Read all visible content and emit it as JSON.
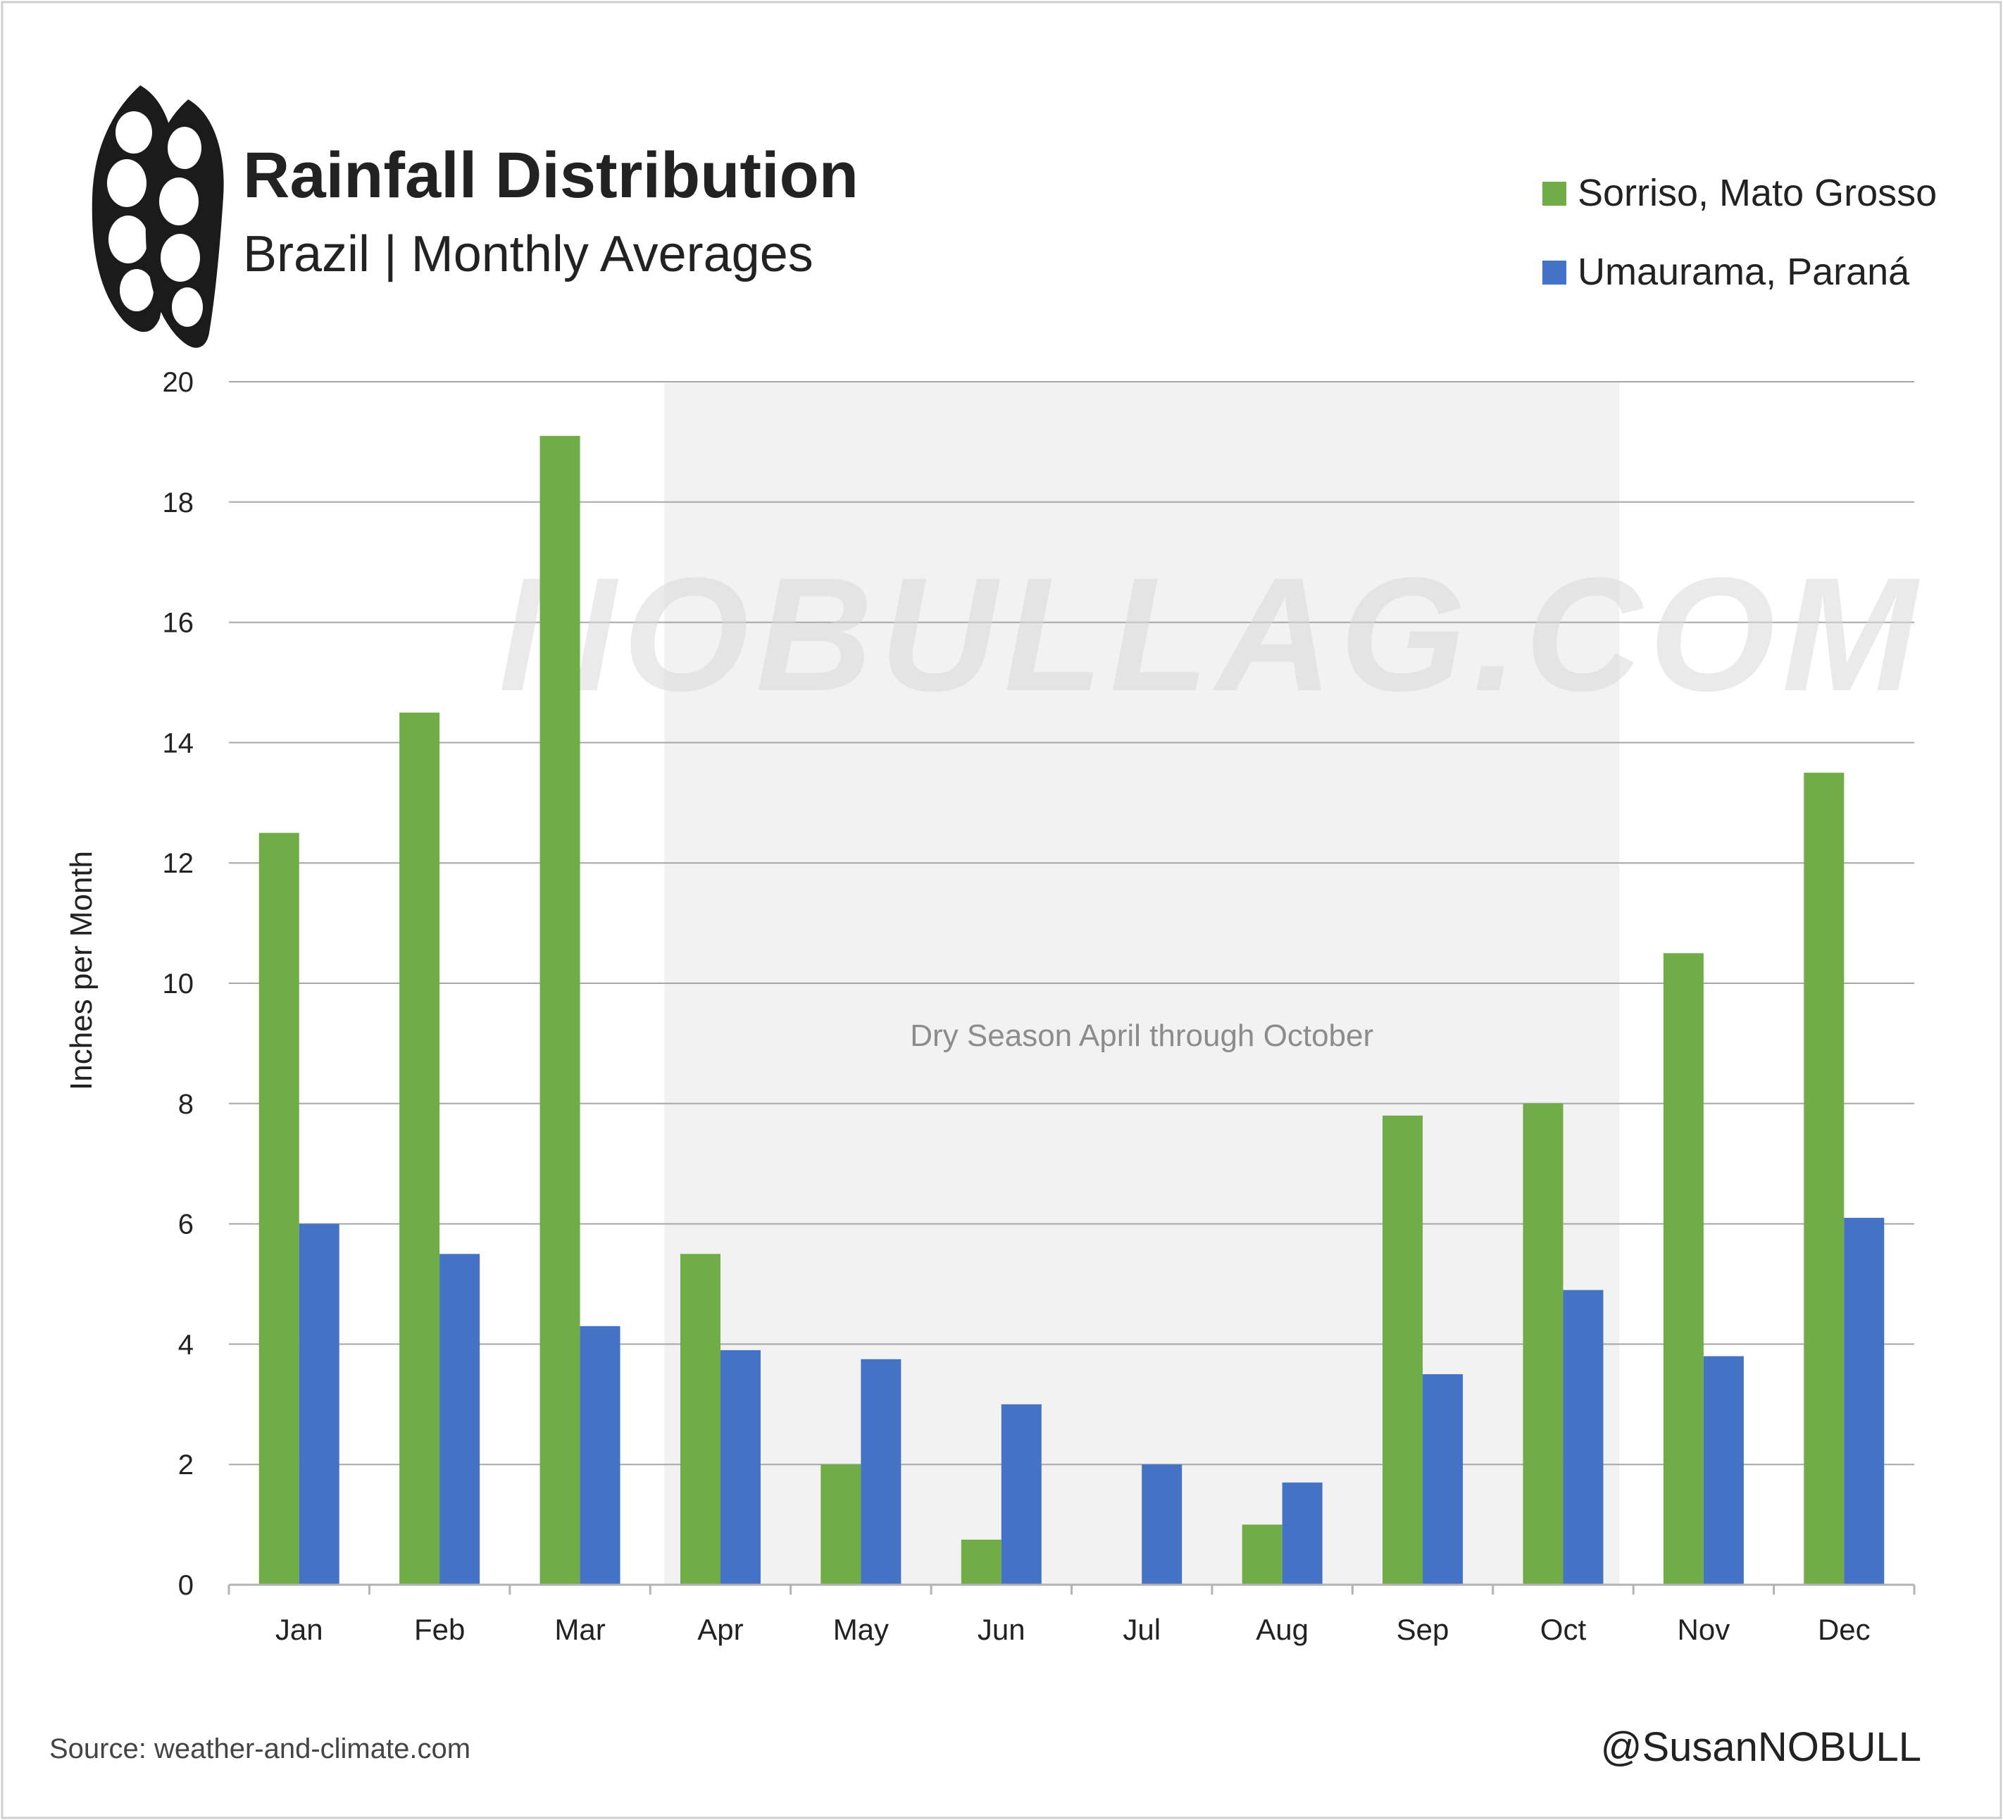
{
  "header": {
    "title": "Rainfall Distribution",
    "subtitle": "Brazil | Monthly Averages",
    "logo_icon": "soybean-pod-icon"
  },
  "watermark": "NOBULLAG.COM",
  "footer": {
    "source": "Source: weather-and-climate.com",
    "handle": "@SusanNOBULL"
  },
  "colors": {
    "series1": "#70AD47",
    "series2": "#4472C4",
    "band": "#F2F2F2",
    "grid": "#A6A6A6",
    "text": "#222222"
  },
  "chart_data": {
    "type": "bar",
    "title": "Rainfall Distribution",
    "subtitle": "Brazil | Monthly Averages",
    "ylabel": "Inches per Month",
    "xlabel": "",
    "ylim": [
      0,
      20
    ],
    "yticks": [
      0,
      2,
      4,
      6,
      8,
      10,
      12,
      14,
      16,
      18,
      20
    ],
    "grid": true,
    "legend_position": "top-right",
    "categories": [
      "Jan",
      "Feb",
      "Mar",
      "Apr",
      "May",
      "Jun",
      "Jul",
      "Aug",
      "Sep",
      "Oct",
      "Nov",
      "Dec"
    ],
    "series": [
      {
        "name": "Sorriso, Mato Grosso",
        "color": "#70AD47",
        "values": [
          12.5,
          14.5,
          19.1,
          5.5,
          2.0,
          0.75,
          0,
          1.0,
          7.8,
          8.0,
          10.5,
          13.5
        ]
      },
      {
        "name": "Umaurama, Paraná",
        "color": "#4472C4",
        "values": [
          6.0,
          5.5,
          4.3,
          3.9,
          3.75,
          3.0,
          2.0,
          1.7,
          3.5,
          4.9,
          3.8,
          6.1
        ]
      }
    ],
    "annotations": [
      {
        "text": "Dry Season April through October",
        "from": "Apr",
        "to": "Oct"
      }
    ]
  }
}
